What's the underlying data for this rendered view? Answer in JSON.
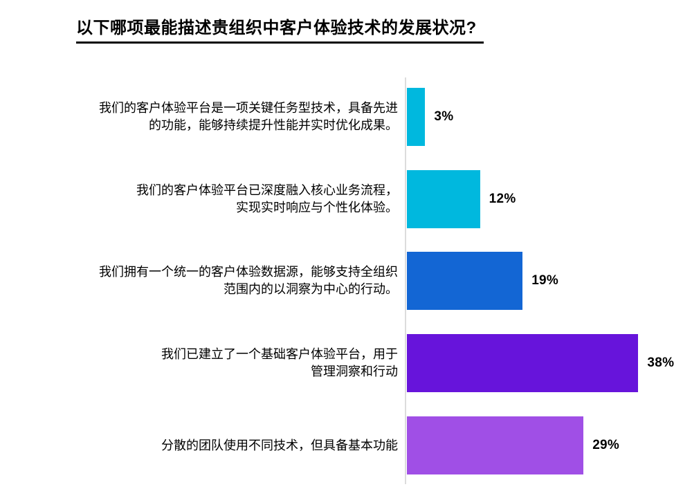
{
  "title": "以下哪项最能描述贵组织中客户体验技术的发展状况?",
  "chart_data": {
    "type": "bar",
    "orientation": "horizontal",
    "title": "以下哪项最能描述贵组织中客户体验技术的发展状况?",
    "categories": [
      "我们的客户体验平台是一项关键任务型技术，具备先进\n的功能，能够持续提升性能并实时优化成果。",
      "我们的客户体验平台已深度融入核心业务流程，\n实现实时响应与个性化体验。",
      "我们拥有一个统一的客户体验数据源，能够支持全组织\n范围内的以洞察为中心的行动。",
      "我们已建立了一个基础客户体验平台，用于\n管理洞察和行动",
      "分散的团队使用不同技术，但具备基本功能"
    ],
    "values": [
      3,
      12,
      19,
      38,
      29
    ],
    "value_labels": [
      "3%",
      "12%",
      "19%",
      "38%",
      "29%"
    ],
    "colors": [
      "#00B8DE",
      "#00B8DE",
      "#1366D4",
      "#6714DB",
      "#A04FE6"
    ],
    "axis_color": "#DCDCDC",
    "xlabel": "",
    "ylabel": "",
    "xlim": [
      0,
      40
    ],
    "grid": false,
    "legend": false,
    "bar_value_position": "right-of-bar"
  }
}
